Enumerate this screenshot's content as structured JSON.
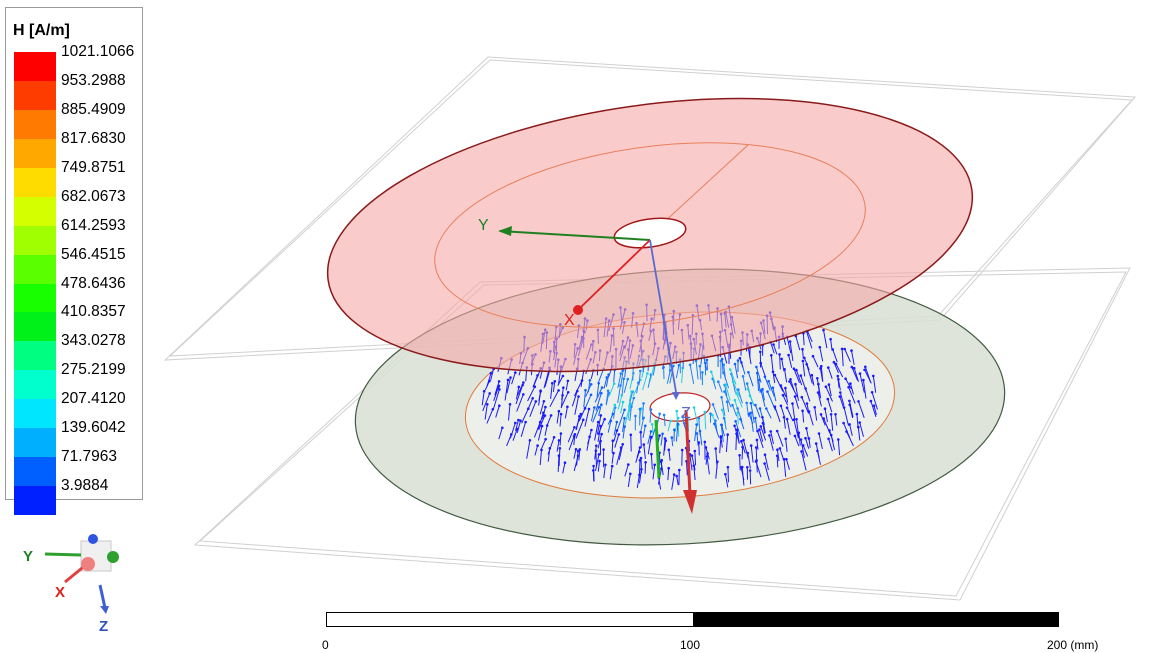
{
  "legend": {
    "title": "H [A/m]",
    "values": [
      "1021.1066",
      "953.2988",
      "885.4909",
      "817.6830",
      "749.8751",
      "682.0673",
      "614.2593",
      "546.4515",
      "478.6436",
      "410.8357",
      "343.0278",
      "275.2199",
      "207.4120",
      "139.6042",
      "71.7963",
      "3.9884"
    ],
    "colors": [
      "#ff0000",
      "#ff3c00",
      "#ff7a00",
      "#ffa800",
      "#ffdc00",
      "#d4ff00",
      "#a0ff00",
      "#5aff00",
      "#18ff00",
      "#00f01a",
      "#00ff80",
      "#00ffcc",
      "#00e6ff",
      "#00b0ff",
      "#0060ff",
      "#0020ff"
    ]
  },
  "axes_labels": {
    "y": "Y",
    "x": "X",
    "z": "Z"
  },
  "triad": {
    "y": "Y",
    "x": "X",
    "z": "Z"
  },
  "scale": {
    "start": "0",
    "mid": "100",
    "end": "200 (mm)"
  },
  "colors": {
    "upper_coil": "#f5b3b3",
    "lower_coil": "#d6ddd3",
    "x_axis": "#e02020",
    "y_axis": "#208020",
    "z_axis": "#5a6ad0",
    "field_vectors": "#1a1aff"
  }
}
